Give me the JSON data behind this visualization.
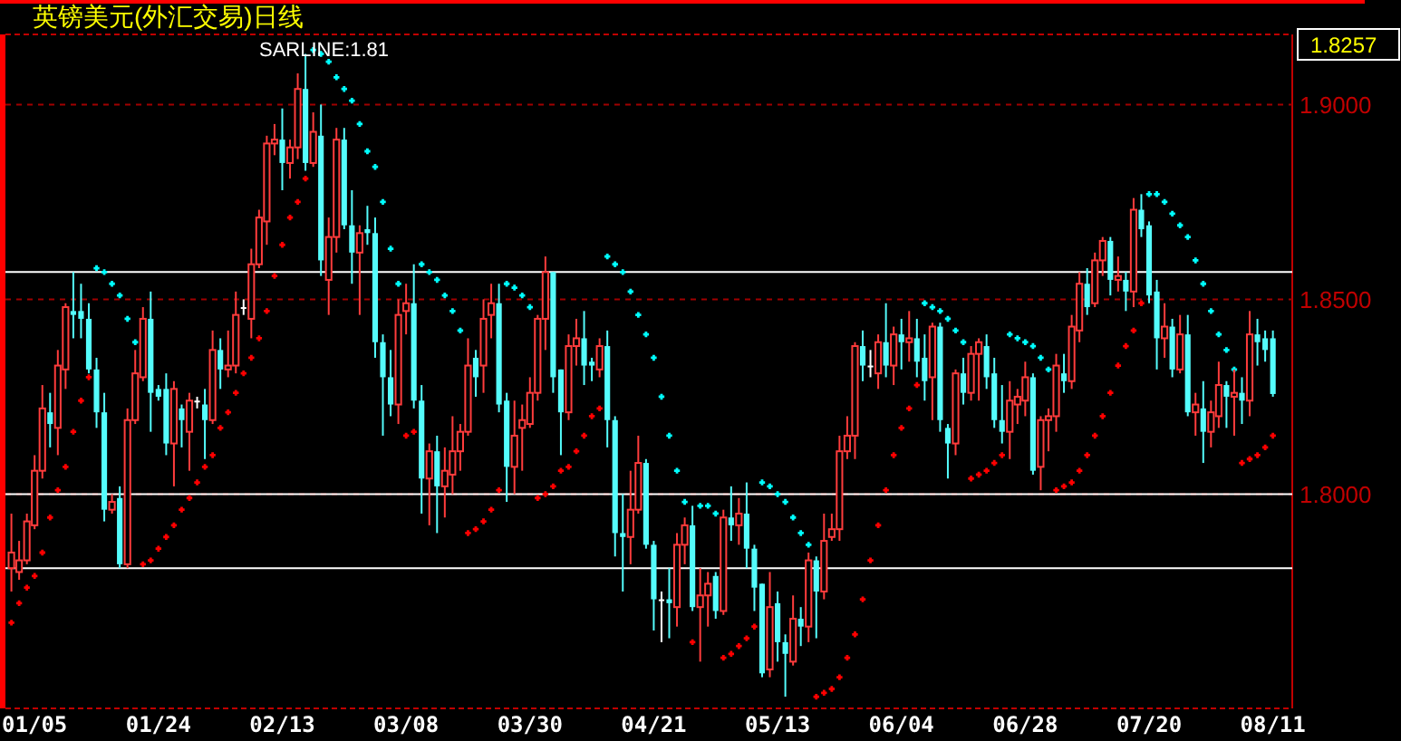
{
  "chart_data": {
    "type": "candlestick",
    "title": "英镑美元(外汇交易)日线",
    "categories": [
      null,
      null,
      null,
      "01/05",
      null,
      null,
      null,
      null,
      null,
      null,
      null,
      null,
      null,
      null,
      null,
      null,
      null,
      null,
      null,
      "01/24",
      null,
      null,
      null,
      null,
      null,
      null,
      null,
      null,
      null,
      null,
      null,
      null,
      null,
      null,
      null,
      "02/13",
      null,
      null,
      null,
      null,
      null,
      null,
      null,
      null,
      null,
      null,
      null,
      null,
      null,
      null,
      null,
      "03/08",
      null,
      null,
      null,
      null,
      null,
      null,
      null,
      null,
      null,
      null,
      null,
      null,
      null,
      null,
      null,
      "03/30",
      null,
      null,
      null,
      null,
      null,
      null,
      null,
      null,
      null,
      null,
      null,
      null,
      null,
      null,
      null,
      "04/21",
      null,
      null,
      null,
      null,
      null,
      null,
      null,
      null,
      null,
      null,
      null,
      null,
      null,
      null,
      null,
      "05/13",
      null,
      null,
      null,
      null,
      null,
      null,
      null,
      null,
      null,
      null,
      null,
      null,
      null,
      null,
      null,
      "06/04",
      null,
      null,
      null,
      null,
      null,
      null,
      null,
      null,
      null,
      null,
      null,
      null,
      null,
      null,
      null,
      "06/28",
      null,
      null,
      null,
      null,
      null,
      null,
      null,
      null,
      null,
      null,
      null,
      null,
      null,
      null,
      null,
      "07/20",
      null,
      null,
      null,
      null,
      null,
      null,
      null,
      null,
      null,
      null,
      null,
      null,
      null,
      null,
      null,
      "08/11"
    ],
    "ohlc": [
      [
        1.781,
        1.795,
        1.775,
        1.785
      ],
      [
        1.78,
        1.788,
        1.778,
        1.783
      ],
      [
        1.783,
        1.795,
        1.782,
        1.793
      ],
      [
        1.792,
        1.81,
        1.791,
        1.806
      ],
      [
        1.806,
        1.828,
        1.804,
        1.822
      ],
      [
        1.821,
        1.826,
        1.812,
        1.818
      ],
      [
        1.817,
        1.837,
        1.81,
        1.833
      ],
      [
        1.832,
        1.849,
        1.827,
        1.848
      ],
      [
        1.847,
        1.857,
        1.84,
        1.846
      ],
      [
        1.847,
        1.854,
        1.84,
        1.845
      ],
      [
        1.845,
        1.849,
        1.831,
        1.832
      ],
      [
        1.832,
        1.835,
        1.817,
        1.821
      ],
      [
        1.821,
        1.826,
        1.793,
        1.796
      ],
      [
        1.796,
        1.8,
        1.795,
        1.798
      ],
      [
        1.799,
        1.802,
        1.781,
        1.782
      ],
      [
        1.782,
        1.822,
        1.781,
        1.819
      ],
      [
        1.819,
        1.837,
        1.818,
        1.831
      ],
      [
        1.83,
        1.848,
        1.829,
        1.845
      ],
      [
        1.845,
        1.852,
        1.816,
        1.826
      ],
      [
        1.827,
        1.828,
        1.824,
        1.825
      ],
      [
        1.827,
        1.831,
        1.81,
        1.813
      ],
      [
        1.813,
        1.829,
        1.802,
        1.827
      ],
      [
        1.822,
        1.823,
        1.812,
        1.819
      ],
      [
        1.816,
        1.826,
        1.806,
        1.824
      ],
      [
        1.824,
        1.825,
        1.822,
        1.824
      ],
      [
        1.823,
        1.827,
        1.809,
        1.819
      ],
      [
        1.819,
        1.842,
        1.818,
        1.837
      ],
      [
        1.837,
        1.84,
        1.827,
        1.832
      ],
      [
        1.832,
        1.842,
        1.83,
        1.833
      ],
      [
        1.833,
        1.852,
        1.831,
        1.846
      ],
      [
        1.848,
        1.85,
        1.846,
        1.848
      ],
      [
        1.845,
        1.863,
        1.84,
        1.859
      ],
      [
        1.859,
        1.873,
        1.858,
        1.871
      ],
      [
        1.87,
        1.892,
        1.864,
        1.89
      ],
      [
        1.89,
        1.895,
        1.887,
        1.891
      ],
      [
        1.891,
        1.899,
        1.878,
        1.885
      ],
      [
        1.885,
        1.891,
        1.881,
        1.889
      ],
      [
        1.889,
        1.908,
        1.886,
        1.904
      ],
      [
        1.904,
        1.913,
        1.883,
        1.885
      ],
      [
        1.885,
        1.898,
        1.884,
        1.893
      ],
      [
        1.892,
        1.9,
        1.856,
        1.86
      ],
      [
        1.855,
        1.871,
        1.846,
        1.866
      ],
      [
        1.866,
        1.894,
        1.862,
        1.891
      ],
      [
        1.891,
        1.894,
        1.868,
        1.869
      ],
      [
        1.869,
        1.878,
        1.854,
        1.862
      ],
      [
        1.862,
        1.869,
        1.846,
        1.867
      ],
      [
        1.868,
        1.874,
        1.864,
        1.867
      ],
      [
        1.867,
        1.871,
        1.835,
        1.839
      ],
      [
        1.839,
        1.841,
        1.815,
        1.83
      ],
      [
        1.83,
        1.837,
        1.82,
        1.823
      ],
      [
        1.823,
        1.85,
        1.818,
        1.846
      ],
      [
        1.847,
        1.854,
        1.841,
        1.849
      ],
      [
        1.849,
        1.859,
        1.822,
        1.824
      ],
      [
        1.824,
        1.828,
        1.795,
        1.804
      ],
      [
        1.804,
        1.813,
        1.792,
        1.811
      ],
      [
        1.811,
        1.815,
        1.79,
        1.802
      ],
      [
        1.802,
        1.812,
        1.794,
        1.806
      ],
      [
        1.805,
        1.82,
        1.8,
        1.811
      ],
      [
        1.811,
        1.818,
        1.806,
        1.816
      ],
      [
        1.816,
        1.84,
        1.815,
        1.833
      ],
      [
        1.835,
        1.837,
        1.825,
        1.83
      ],
      [
        1.833,
        1.85,
        1.826,
        1.845
      ],
      [
        1.846,
        1.854,
        1.84,
        1.849
      ],
      [
        1.849,
        1.854,
        1.821,
        1.823
      ],
      [
        1.824,
        1.826,
        1.798,
        1.807
      ],
      [
        1.807,
        1.824,
        1.8,
        1.815
      ],
      [
        1.817,
        1.823,
        1.806,
        1.819
      ],
      [
        1.818,
        1.83,
        1.817,
        1.826
      ],
      [
        1.826,
        1.846,
        1.824,
        1.845
      ],
      [
        1.845,
        1.861,
        1.837,
        1.857
      ],
      [
        1.857,
        1.857,
        1.826,
        1.83
      ],
      [
        1.832,
        1.832,
        1.81,
        1.821
      ],
      [
        1.821,
        1.841,
        1.819,
        1.838
      ],
      [
        1.838,
        1.845,
        1.833,
        1.84
      ],
      [
        1.84,
        1.847,
        1.828,
        1.833
      ],
      [
        1.834,
        1.835,
        1.829,
        1.833
      ],
      [
        1.832,
        1.84,
        1.83,
        1.838
      ],
      [
        1.838,
        1.842,
        1.812,
        1.819
      ],
      [
        1.819,
        1.82,
        1.784,
        1.79
      ],
      [
        1.79,
        1.8,
        1.775,
        1.789
      ],
      [
        1.789,
        1.806,
        1.782,
        1.796
      ],
      [
        1.796,
        1.815,
        1.795,
        1.808
      ],
      [
        1.808,
        1.809,
        1.786,
        1.787
      ],
      [
        1.787,
        1.788,
        1.765,
        1.773
      ],
      [
        1.773,
        1.775,
        1.762,
        1.773
      ],
      [
        1.773,
        1.781,
        1.763,
        1.772
      ],
      [
        1.771,
        1.79,
        1.766,
        1.787
      ],
      [
        1.787,
        1.794,
        1.782,
        1.792
      ],
      [
        1.792,
        1.797,
        1.77,
        1.771
      ],
      [
        1.771,
        1.781,
        1.757,
        1.774
      ],
      [
        1.774,
        1.78,
        1.766,
        1.777
      ],
      [
        1.779,
        1.78,
        1.768,
        1.77
      ],
      [
        1.77,
        1.796,
        1.769,
        1.794
      ],
      [
        1.794,
        1.802,
        1.788,
        1.792
      ],
      [
        1.792,
        1.799,
        1.787,
        1.795
      ],
      [
        1.795,
        1.803,
        1.781,
        1.786
      ],
      [
        1.786,
        1.787,
        1.77,
        1.776
      ],
      [
        1.777,
        1.777,
        1.753,
        1.754
      ],
      [
        1.755,
        1.78,
        1.753,
        1.771
      ],
      [
        1.772,
        1.775,
        1.757,
        1.762
      ],
      [
        1.762,
        1.764,
        1.748,
        1.759
      ],
      [
        1.757,
        1.774,
        1.756,
        1.768
      ],
      [
        1.768,
        1.771,
        1.761,
        1.766
      ],
      [
        1.766,
        1.785,
        1.762,
        1.783
      ],
      [
        1.783,
        1.784,
        1.763,
        1.775
      ],
      [
        1.775,
        1.795,
        1.773,
        1.788
      ],
      [
        1.789,
        1.795,
        1.788,
        1.791
      ],
      [
        1.791,
        1.815,
        1.788,
        1.811
      ],
      [
        1.811,
        1.82,
        1.809,
        1.815
      ],
      [
        1.815,
        1.839,
        1.809,
        1.838
      ],
      [
        1.838,
        1.842,
        1.829,
        1.833
      ],
      [
        1.833,
        1.837,
        1.83,
        1.833
      ],
      [
        1.831,
        1.841,
        1.827,
        1.839
      ],
      [
        1.839,
        1.849,
        1.83,
        1.833
      ],
      [
        1.833,
        1.843,
        1.828,
        1.841
      ],
      [
        1.841,
        1.845,
        1.832,
        1.839
      ],
      [
        1.839,
        1.847,
        1.834,
        1.84
      ],
      [
        1.84,
        1.845,
        1.83,
        1.834
      ],
      [
        1.835,
        1.841,
        1.824,
        1.829
      ],
      [
        1.83,
        1.844,
        1.819,
        1.843
      ],
      [
        1.843,
        1.844,
        1.816,
        1.819
      ],
      [
        1.817,
        1.818,
        1.804,
        1.813
      ],
      [
        1.813,
        1.832,
        1.81,
        1.831
      ],
      [
        1.831,
        1.835,
        1.823,
        1.826
      ],
      [
        1.826,
        1.838,
        1.824,
        1.836
      ],
      [
        1.836,
        1.84,
        1.824,
        1.839
      ],
      [
        1.838,
        1.841,
        1.827,
        1.83
      ],
      [
        1.831,
        1.835,
        1.817,
        1.819
      ],
      [
        1.819,
        1.828,
        1.813,
        1.816
      ],
      [
        1.816,
        1.829,
        1.809,
        1.824
      ],
      [
        1.823,
        1.827,
        1.818,
        1.825
      ],
      [
        1.824,
        1.834,
        1.82,
        1.83
      ],
      [
        1.83,
        1.831,
        1.805,
        1.806
      ],
      [
        1.807,
        1.82,
        1.801,
        1.819
      ],
      [
        1.819,
        1.822,
        1.811,
        1.82
      ],
      [
        1.82,
        1.836,
        1.816,
        1.833
      ],
      [
        1.831,
        1.836,
        1.826,
        1.829
      ],
      [
        1.829,
        1.846,
        1.827,
        1.843
      ],
      [
        1.842,
        1.857,
        1.839,
        1.854
      ],
      [
        1.854,
        1.858,
        1.846,
        1.848
      ],
      [
        1.849,
        1.862,
        1.848,
        1.86
      ],
      [
        1.86,
        1.866,
        1.856,
        1.865
      ],
      [
        1.865,
        1.866,
        1.851,
        1.855
      ],
      [
        1.855,
        1.861,
        1.852,
        1.856
      ],
      [
        1.855,
        1.857,
        1.847,
        1.852
      ],
      [
        1.852,
        1.876,
        1.848,
        1.873
      ],
      [
        1.873,
        1.877,
        1.866,
        1.868
      ],
      [
        1.869,
        1.87,
        1.849,
        1.851
      ],
      [
        1.852,
        1.855,
        1.832,
        1.84
      ],
      [
        1.84,
        1.849,
        1.835,
        1.843
      ],
      [
        1.843,
        1.845,
        1.83,
        1.832
      ],
      [
        1.832,
        1.846,
        1.831,
        1.841
      ],
      [
        1.841,
        1.846,
        1.82,
        1.821
      ],
      [
        1.821,
        1.826,
        1.815,
        1.823
      ],
      [
        1.822,
        1.829,
        1.808,
        1.816
      ],
      [
        1.816,
        1.824,
        1.812,
        1.821
      ],
      [
        1.82,
        1.834,
        1.817,
        1.828
      ],
      [
        1.828,
        1.829,
        1.817,
        1.825
      ],
      [
        1.825,
        1.832,
        1.815,
        1.826
      ],
      [
        1.826,
        1.83,
        1.818,
        1.824
      ],
      [
        1.824,
        1.847,
        1.82,
        1.841
      ],
      [
        1.841,
        1.845,
        1.833,
        1.839
      ],
      [
        1.84,
        1.842,
        1.834,
        1.837
      ],
      [
        1.84,
        1.842,
        1.825,
        1.8257
      ]
    ],
    "colors": [
      "#ff3c3c",
      "#ff3c3c",
      "#ff3c3c",
      "#ff3c3c",
      "#ff3c3c",
      "#54fcfc",
      "#ff3c3c",
      "#ff3c3c",
      "#54fcfc",
      "#54fcfc",
      "#54fcfc",
      "#54fcfc",
      "#54fcfc",
      "#ff3c3c",
      "#54fcfc",
      "#ff3c3c",
      "#ff3c3c",
      "#ff3c3c",
      "#54fcfc",
      "#54fcfc",
      "#54fcfc",
      "#ff3c3c",
      "#54fcfc",
      "#ff3c3c",
      "#ffffff",
      "#54fcfc",
      "#ff3c3c",
      "#54fcfc",
      "#ff3c3c",
      "#ff3c3c",
      "#ffffff",
      "#ff3c3c",
      "#ff3c3c",
      "#ff3c3c",
      "#ff3c3c",
      "#54fcfc",
      "#ff3c3c",
      "#ff3c3c",
      "#54fcfc",
      "#ff3c3c",
      "#54fcfc",
      "#ff3c3c",
      "#ff3c3c",
      "#54fcfc",
      "#54fcfc",
      "#ff3c3c",
      "#54fcfc",
      "#54fcfc",
      "#54fcfc",
      "#54fcfc",
      "#ff3c3c",
      "#ff3c3c",
      "#54fcfc",
      "#54fcfc",
      "#ff3c3c",
      "#54fcfc",
      "#ff3c3c",
      "#ff3c3c",
      "#ff3c3c",
      "#ff3c3c",
      "#54fcfc",
      "#ff3c3c",
      "#ff3c3c",
      "#54fcfc",
      "#54fcfc",
      "#ff3c3c",
      "#ff3c3c",
      "#ff3c3c",
      "#ff3c3c",
      "#ff3c3c",
      "#54fcfc",
      "#54fcfc",
      "#ff3c3c",
      "#ff3c3c",
      "#54fcfc",
      "#54fcfc",
      "#ff3c3c",
      "#54fcfc",
      "#54fcfc",
      "#54fcfc",
      "#ff3c3c",
      "#ff3c3c",
      "#54fcfc",
      "#54fcfc",
      "#ffffff",
      "#54fcfc",
      "#ff3c3c",
      "#ff3c3c",
      "#54fcfc",
      "#ff3c3c",
      "#ff3c3c",
      "#54fcfc",
      "#ff3c3c",
      "#54fcfc",
      "#ff3c3c",
      "#54fcfc",
      "#54fcfc",
      "#54fcfc",
      "#ff3c3c",
      "#54fcfc",
      "#54fcfc",
      "#ff3c3c",
      "#54fcfc",
      "#ff3c3c",
      "#54fcfc",
      "#ff3c3c",
      "#ff3c3c",
      "#ff3c3c",
      "#ff3c3c",
      "#ff3c3c",
      "#54fcfc",
      "#ffffff",
      "#ff3c3c",
      "#54fcfc",
      "#ff3c3c",
      "#54fcfc",
      "#ff3c3c",
      "#54fcfc",
      "#54fcfc",
      "#ff3c3c",
      "#54fcfc",
      "#54fcfc",
      "#ff3c3c",
      "#54fcfc",
      "#ff3c3c",
      "#ff3c3c",
      "#54fcfc",
      "#54fcfc",
      "#54fcfc",
      "#ff3c3c",
      "#ff3c3c",
      "#ff3c3c",
      "#54fcfc",
      "#ff3c3c",
      "#ff3c3c",
      "#ff3c3c",
      "#54fcfc",
      "#ff3c3c",
      "#ff3c3c",
      "#54fcfc",
      "#ff3c3c",
      "#ff3c3c",
      "#54fcfc",
      "#ff3c3c",
      "#54fcfc",
      "#ff3c3c",
      "#54fcfc",
      "#54fcfc",
      "#54fcfc",
      "#ff3c3c",
      "#54fcfc",
      "#ff3c3c",
      "#54fcfc",
      "#ff3c3c",
      "#54fcfc",
      "#ff3c3c",
      "#ff3c3c",
      "#54fcfc",
      "#ff3c3c",
      "#54fcfc",
      "#ff3c3c",
      "#54fcfc",
      "#54fcfc",
      "#54fcfc"
    ],
    "series": [
      {
        "type": "scatter",
        "values": [
          1.767,
          1.772,
          1.776,
          1.779,
          1.785,
          1.794,
          1.801,
          1.807,
          1.816,
          1.824,
          1.83,
          1.858,
          1.857,
          1.854,
          1.851,
          1.845,
          1.839,
          1.782,
          1.783,
          1.786,
          1.789,
          1.792,
          1.796,
          1.799,
          1.803,
          1.807,
          1.81,
          1.817,
          1.821,
          1.826,
          1.831,
          1.835,
          1.84,
          1.847,
          1.856,
          1.864,
          1.871,
          1.875,
          1.881,
          1.914,
          1.913,
          1.911,
          1.907,
          1.904,
          1.901,
          1.895,
          1.888,
          1.884,
          1.875,
          1.863,
          1.854,
          1.815,
          1.816,
          1.859,
          1.857,
          1.855,
          1.851,
          1.847,
          1.842,
          1.79,
          1.791,
          1.793,
          1.796,
          1.801,
          1.854,
          1.853,
          1.851,
          1.848,
          1.799,
          1.8,
          1.802,
          1.806,
          1.807,
          1.811,
          1.815,
          1.82,
          1.822,
          1.861,
          1.859,
          1.857,
          1.852,
          1.846,
          1.841,
          1.835,
          1.825,
          1.815,
          1.806,
          1.798,
          1.762,
          1.797,
          1.797,
          1.795,
          1.758,
          1.759,
          1.761,
          1.763,
          1.766,
          1.803,
          1.802,
          1.8,
          1.798,
          1.794,
          1.79,
          1.787,
          1.748,
          1.749,
          1.75,
          1.753,
          1.758,
          1.764,
          1.773,
          1.783,
          1.792,
          1.801,
          1.81,
          1.817,
          1.822,
          1.828,
          1.849,
          1.848,
          1.847,
          1.845,
          1.842,
          1.839,
          1.804,
          1.805,
          1.806,
          1.808,
          1.81,
          1.841,
          1.84,
          1.839,
          1.838,
          1.835,
          1.832,
          1.801,
          1.802,
          1.803,
          1.806,
          1.81,
          1.815,
          1.82,
          1.826,
          1.833,
          1.838,
          1.842,
          1.849,
          1.877,
          1.877,
          1.875,
          1.872,
          1.869,
          1.866,
          1.86,
          1.854,
          1.847,
          1.841,
          1.837,
          1.832,
          1.808,
          1.809,
          1.81,
          1.812,
          1.815
        ],
        "colors": [
          "#ff0000",
          "#ff0000",
          "#ff0000",
          "#ff0000",
          "#ff0000",
          "#ff0000",
          "#ff0000",
          "#ff0000",
          "#ff0000",
          "#ff0000",
          "#ff0000",
          "#00ffff",
          "#00ffff",
          "#00ffff",
          "#00ffff",
          "#00ffff",
          "#00ffff",
          "#ff0000",
          "#ff0000",
          "#ff0000",
          "#ff0000",
          "#ff0000",
          "#ff0000",
          "#ff0000",
          "#ff0000",
          "#ff0000",
          "#ff0000",
          "#ff0000",
          "#ff0000",
          "#ff0000",
          "#ff0000",
          "#ff0000",
          "#ff0000",
          "#ff0000",
          "#ff0000",
          "#ff0000",
          "#ff0000",
          "#ff0000",
          "#ff0000",
          "#00ffff",
          "#00ffff",
          "#00ffff",
          "#00ffff",
          "#00ffff",
          "#00ffff",
          "#00ffff",
          "#00ffff",
          "#00ffff",
          "#00ffff",
          "#00ffff",
          "#00ffff",
          "#ff0000",
          "#ff0000",
          "#00ffff",
          "#00ffff",
          "#00ffff",
          "#00ffff",
          "#00ffff",
          "#00ffff",
          "#ff0000",
          "#ff0000",
          "#ff0000",
          "#ff0000",
          "#ff0000",
          "#00ffff",
          "#00ffff",
          "#00ffff",
          "#00ffff",
          "#ff0000",
          "#ff0000",
          "#ff0000",
          "#ff0000",
          "#ff0000",
          "#ff0000",
          "#ff0000",
          "#ff0000",
          "#ff0000",
          "#00ffff",
          "#00ffff",
          "#00ffff",
          "#00ffff",
          "#00ffff",
          "#00ffff",
          "#00ffff",
          "#00ffff",
          "#00ffff",
          "#00ffff",
          "#00ffff",
          "#ff0000",
          "#00ffff",
          "#00ffff",
          "#00ffff",
          "#ff0000",
          "#ff0000",
          "#ff0000",
          "#ff0000",
          "#ff0000",
          "#00ffff",
          "#00ffff",
          "#00ffff",
          "#00ffff",
          "#00ffff",
          "#00ffff",
          "#00ffff",
          "#ff0000",
          "#ff0000",
          "#ff0000",
          "#ff0000",
          "#ff0000",
          "#ff0000",
          "#ff0000",
          "#ff0000",
          "#ff0000",
          "#ff0000",
          "#ff0000",
          "#ff0000",
          "#ff0000",
          "#ff0000",
          "#00ffff",
          "#00ffff",
          "#00ffff",
          "#00ffff",
          "#00ffff",
          "#00ffff",
          "#ff0000",
          "#ff0000",
          "#ff0000",
          "#ff0000",
          "#ff0000",
          "#00ffff",
          "#00ffff",
          "#00ffff",
          "#00ffff",
          "#00ffff",
          "#00ffff",
          "#ff0000",
          "#ff0000",
          "#ff0000",
          "#ff0000",
          "#ff0000",
          "#ff0000",
          "#ff0000",
          "#ff0000",
          "#ff0000",
          "#ff0000",
          "#ff0000",
          "#ff0000",
          "#00ffff",
          "#00ffff",
          "#00ffff",
          "#00ffff",
          "#00ffff",
          "#00ffff",
          "#00ffff",
          "#00ffff",
          "#00ffff",
          "#00ffff",
          "#00ffff",
          "#00ffff",
          "#ff0000",
          "#ff0000",
          "#ff0000",
          "#ff0000",
          "#ff0000"
        ]
      }
    ],
    "marker": "cross",
    "ylim": [
      1.745,
      1.918
    ],
    "yticks": [
      {
        "value": 1.8,
        "label": "1.8000"
      },
      {
        "value": 1.85,
        "label": "1.8500"
      },
      {
        "value": 1.9,
        "label": "1.9000"
      }
    ],
    "grid": "y",
    "ref_lines": [
      {
        "axis": "y",
        "value": 1.857,
        "color": "#ffffff"
      },
      {
        "axis": "y",
        "value": 1.8,
        "color": "#ffffff"
      },
      {
        "axis": "y",
        "value": 1.781,
        "color": "#ffffff"
      }
    ],
    "annotations": [
      "SARLINE:1.81",
      "1.8257"
    ]
  }
}
